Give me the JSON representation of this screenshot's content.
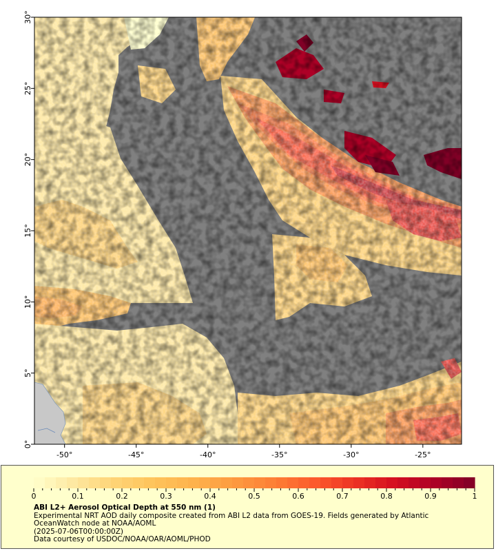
{
  "map": {
    "lon_ticks": [
      {
        "value": -50,
        "label": "-50°"
      },
      {
        "value": -45,
        "label": "-45°"
      },
      {
        "value": -40,
        "label": "-40°"
      },
      {
        "value": -35,
        "label": "-35°"
      },
      {
        "value": -30,
        "label": "-30°"
      },
      {
        "value": -25,
        "label": "-25°"
      }
    ],
    "lat_ticks": [
      {
        "value": 0,
        "label": "0°"
      },
      {
        "value": 5,
        "label": "5°"
      },
      {
        "value": 10,
        "label": "10°"
      },
      {
        "value": 15,
        "label": "15°"
      },
      {
        "value": 20,
        "label": "20°"
      },
      {
        "value": 25,
        "label": "25°"
      },
      {
        "value": 30,
        "label": "30°"
      }
    ],
    "lon_range": [
      -52.1,
      -22.3
    ],
    "lat_range": [
      0,
      30
    ],
    "no_data_color": "#808080",
    "land_color": "#c8c8c8"
  },
  "colorbar": {
    "range": [
      0,
      1
    ],
    "tick_labels": [
      "0",
      "0.1",
      "0.2",
      "0.3",
      "0.4",
      "0.5",
      "0.6",
      "0.7",
      "0.8",
      "0.9",
      "1"
    ],
    "colors": [
      "#ffffcc",
      "#fee8a0",
      "#fed476",
      "#fec35a",
      "#feb24c",
      "#fd9a40",
      "#fd7f35",
      "#fc5a2c",
      "#ed3324",
      "#d40f20",
      "#ad0026",
      "#800026"
    ]
  },
  "legend": {
    "title": "ABI L2+ Aerosol Optical Depth at 550 nm (1)",
    "line1": "Experimental NRT AOD daily composite created from ABI L2 data from GOES-19. Fields generated by Atlantic OceanWatch node at NOAA/AOML",
    "line2": "(2025-07-06T00:00:00Z)",
    "line3": "Data courtesy of USDOC/NOAA/OAR/AOML/PHOD"
  }
}
